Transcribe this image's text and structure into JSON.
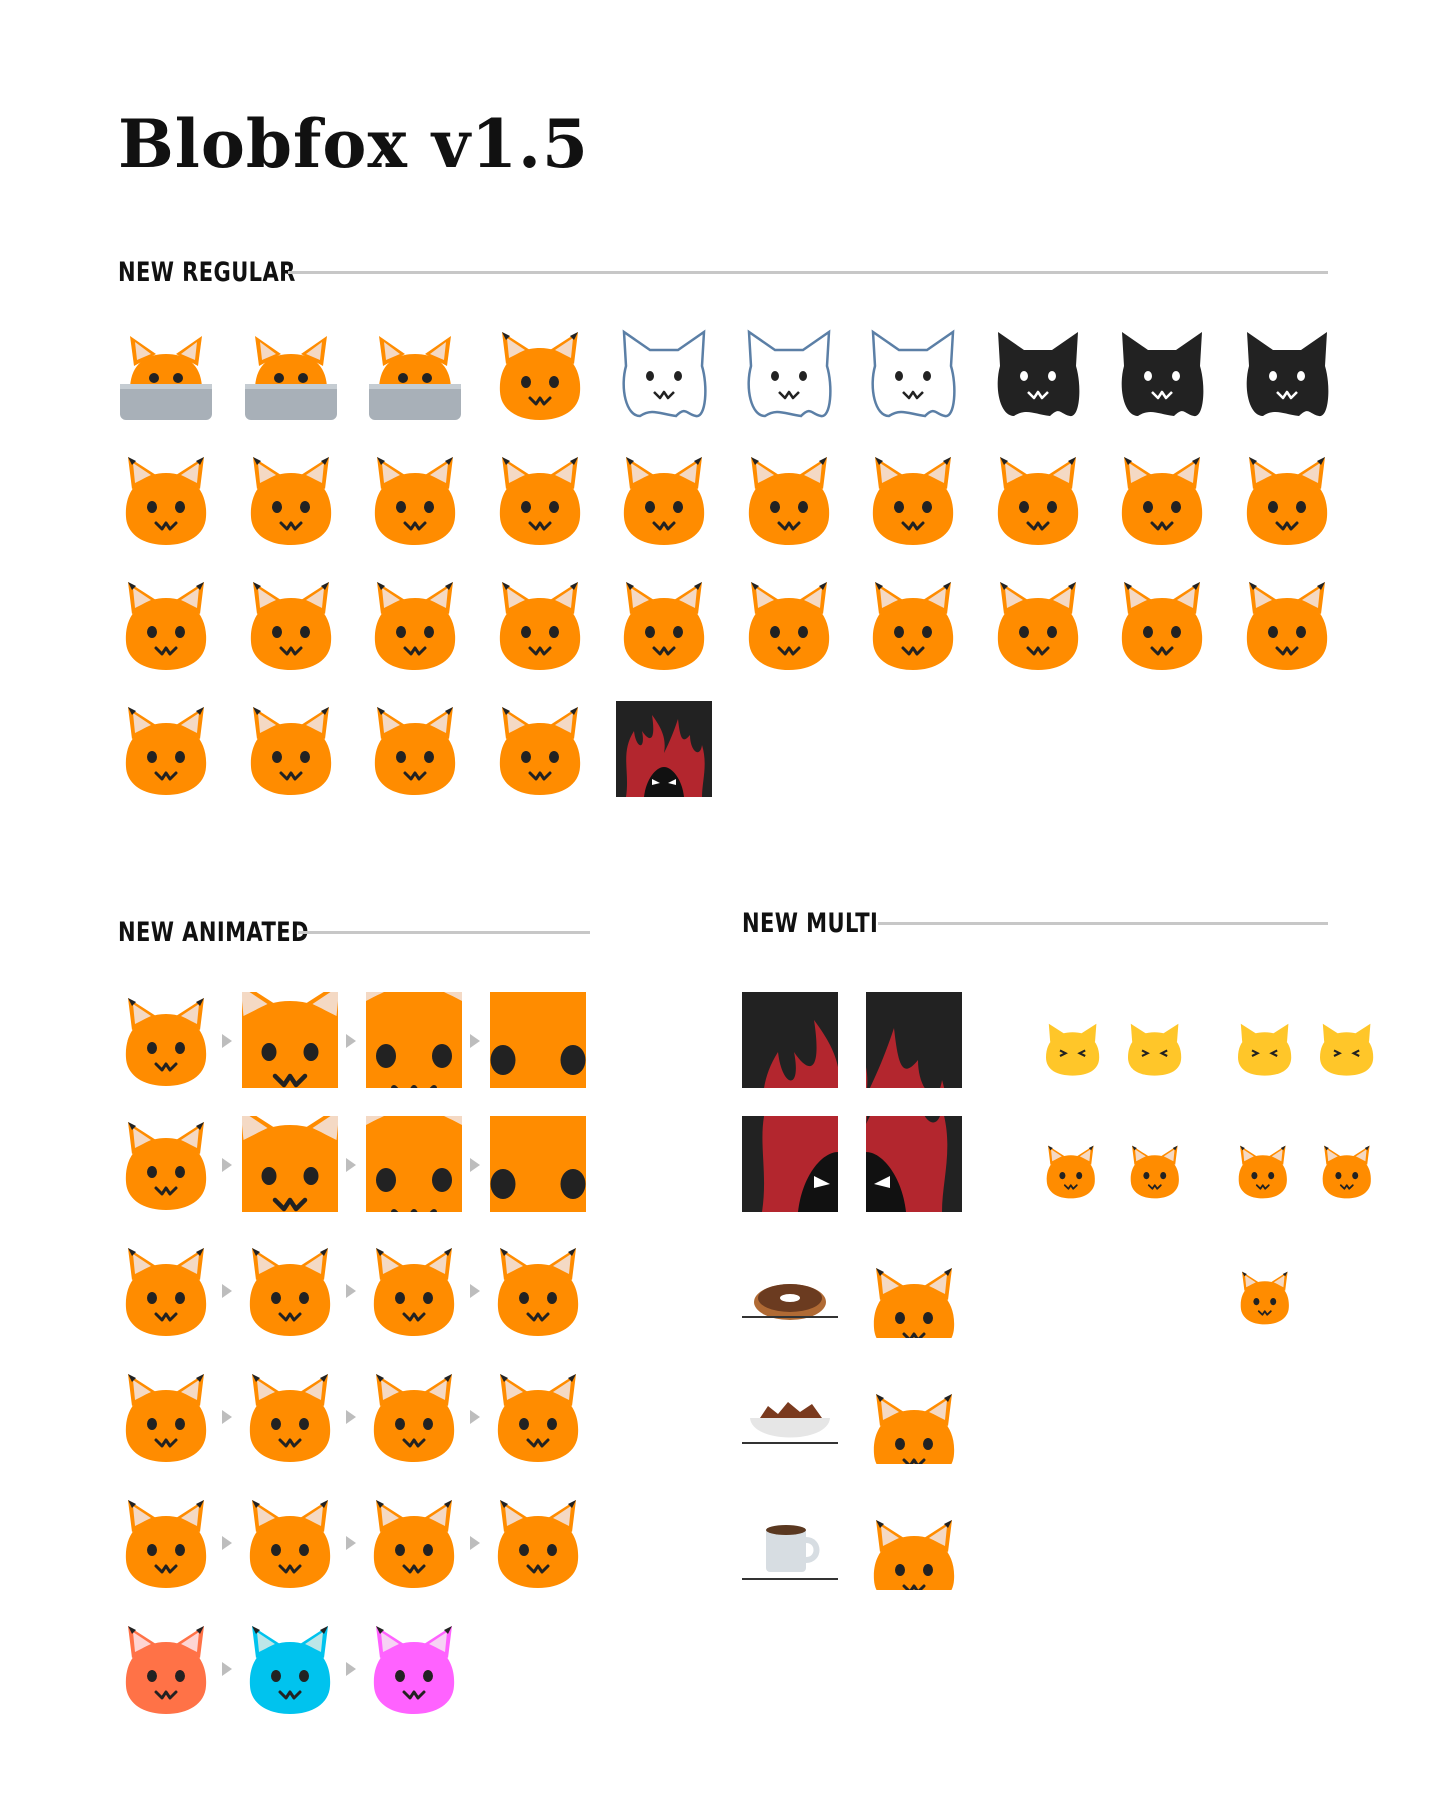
{
  "title": "Blobfox v1.5",
  "sections": {
    "regular": {
      "label": "NEW REGULAR"
    },
    "animated": {
      "label": "NEW ANIMATED"
    },
    "multi": {
      "label": "NEW MULTI"
    }
  },
  "colors": {
    "fox_orange": "#ff8c00",
    "ear_inner": "#f4d9c4",
    "dark": "#222222",
    "line": "#c7c7c7",
    "laptop": "#a8b0b8",
    "ghost_outline": "#5b7fa6",
    "fire": "#b3262e",
    "cat_yellow": "#ffc629",
    "heart_pink": "#e0509a"
  },
  "regular_emojis": [
    "blobfox-laptop-icon",
    "blobfox-laptop-peek-icon",
    "blobfox-laptop-notice-icon",
    "blobfox-scream-icon",
    "blobfox-ghost-grin-icon",
    "blobfox-ghost-icon",
    "blobfox-ghost-fluffy-icon",
    "blobfox-shadow-grin-icon",
    "blobfox-shadow-icon",
    "blobfox-shadow-fluffy-icon",
    "blobfox-tomato-icon",
    "blobfox-melon-icon",
    "blobfox-flip-icon",
    "blobfox-flip-dizzy-icon",
    "blobfox-confused-icon",
    "blobfox-joy-icon",
    "blobfox-hooray-icon",
    "blobfox-hooray-both-icon",
    "blobfox-think-smug-icon",
    "blobfox-deal-with-it-icon",
    "blobfox-tongue-icon",
    "blobfox-heart-icon",
    "blobfox-happy-icon",
    "blobfox-magnify-icon",
    "blobfox-think-eye-icon",
    "blobfox-think-scared-icon",
    "blobfox-eat-icon",
    "blobfox-tea-icon",
    "blobfox-stare-icon",
    "blobfox-sick-icon",
    "blobfox-vomit-icon",
    "blobfox-blush-icon",
    "blobfox-thumbsup-icon",
    "blobfox-thumbsdown-icon",
    "blobfox-evil-fire-icon"
  ],
  "animated_rows": [
    "blobfox-zoom-think-anim",
    "blobfox-zoom-stare-anim",
    "blobfox-bounce-anim",
    "blobfox-coffee-anim",
    "blobfox-think-anim",
    "blobfox-color-anim"
  ],
  "multi_items": [
    "blobfox-evil-fire-multi",
    "blobfox-cat-hearts-multi",
    "blobfox-fox-hearts-multi",
    "blobfox-donut-multi",
    "blobfox-snack-multi",
    "blobfox-coffee-multi"
  ]
}
